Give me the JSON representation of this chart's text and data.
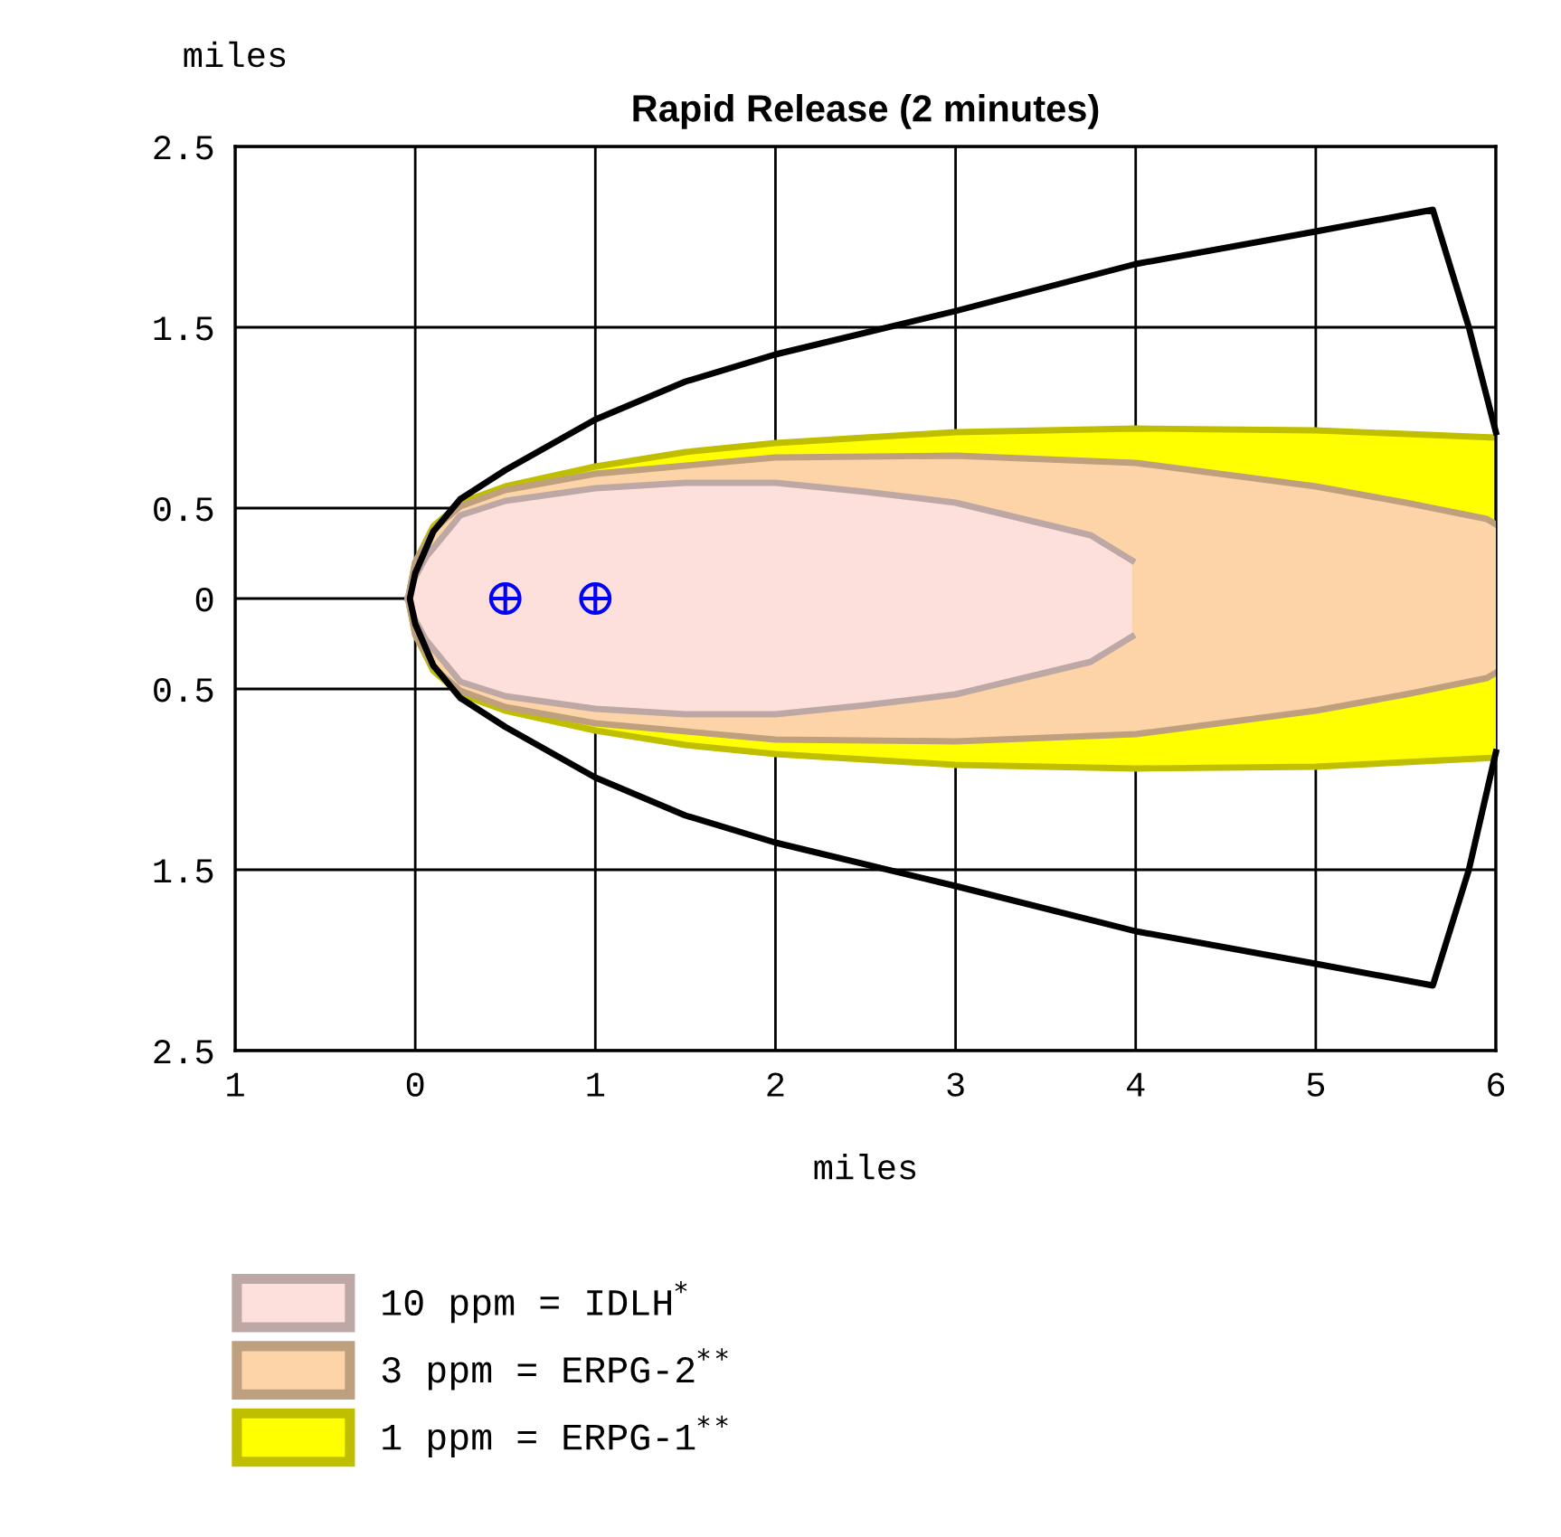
{
  "chart_data": {
    "type": "area",
    "title": "Rapid Release (2 minutes)",
    "xlabel": "miles",
    "ylabel": "miles",
    "xlim": [
      -1,
      6
    ],
    "xticks": [
      {
        "value": -1,
        "label": "1"
      },
      0,
      1,
      2,
      3,
      4,
      5,
      6
    ],
    "ylim": [
      -2.5,
      2.5
    ],
    "yticks": [
      {
        "value": 2.5,
        "label": "2.5"
      },
      {
        "value": 1.5,
        "label": "1.5"
      },
      {
        "value": 0.5,
        "label": "0.5"
      },
      0,
      {
        "value": -0.5,
        "label": "0.5"
      },
      {
        "value": -1.5,
        "label": "1.5"
      },
      {
        "value": -2.5,
        "label": "2.5"
      }
    ],
    "grid": true,
    "legend": "bottom",
    "series": [
      {
        "name": "1 ppm = ERPG-1$^{**}$",
        "color": "#ffff00",
        "x": [
          -0.04,
          0,
          0.1,
          0.25,
          0.5,
          1,
          1.5,
          2,
          3,
          4,
          5,
          6
        ],
        "values": [
          0,
          0.2,
          0.4,
          0.53,
          0.62,
          0.73,
          0.81,
          0.86,
          0.92,
          0.94,
          0.93,
          0.89
        ]
      },
      {
        "color": "#ffff00",
        "x": [
          -0.04,
          0,
          0.1,
          0.25,
          0.5,
          1,
          1.5,
          2,
          3,
          4,
          5,
          6
        ],
        "values": [
          0,
          -0.2,
          -0.4,
          -0.53,
          -0.62,
          -0.73,
          -0.81,
          -0.86,
          -0.92,
          -0.94,
          -0.93,
          -0.88
        ]
      },
      {
        "name": "3 ppm = ERPG-2$^{**}$",
        "color": "#fdd4a8",
        "x": [
          -0.04,
          0,
          0.1,
          0.25,
          0.5,
          1,
          2,
          3,
          4,
          5,
          5.5,
          5.95,
          6
        ],
        "values": [
          0,
          0.2,
          0.38,
          0.51,
          0.6,
          0.69,
          0.78,
          0.79,
          0.75,
          0.62,
          0.53,
          0.44,
          0.41
        ]
      },
      {
        "color": "#fdd4a8",
        "x": [
          -0.04,
          0,
          0.1,
          0.25,
          0.5,
          1,
          2,
          3,
          4,
          5,
          5.5,
          5.95,
          6
        ],
        "values": [
          0,
          -0.2,
          -0.38,
          -0.51,
          -0.6,
          -0.69,
          -0.78,
          -0.79,
          -0.75,
          -0.62,
          -0.53,
          -0.44,
          -0.41
        ]
      },
      {
        "name": "10 ppm = IDLH$^{*}$",
        "color": "#fde0dc",
        "x": [
          -0.04,
          0,
          0.06,
          0.25,
          0.5,
          1,
          1.5,
          2,
          2.5,
          3,
          3.5,
          3.75,
          3.98
        ],
        "values": [
          0,
          0.12,
          0.23,
          0.46,
          0.54,
          0.61,
          0.64,
          0.64,
          0.59,
          0.53,
          0.41,
          0.35,
          0.21
        ]
      },
      {
        "color": "#fde0dc",
        "x": [
          -0.04,
          0,
          0.06,
          0.25,
          0.5,
          1,
          1.5,
          2,
          2.5,
          3,
          3.5,
          3.75,
          3.98
        ],
        "values": [
          0,
          -0.12,
          -0.23,
          -0.46,
          -0.54,
          -0.61,
          -0.64,
          -0.64,
          -0.59,
          -0.53,
          -0.41,
          -0.35,
          -0.21
        ]
      },
      {
        "type": "line",
        "color": "#000000",
        "x": [
          6,
          5.85,
          5.65,
          5,
          4,
          3,
          2,
          1.5,
          1,
          0.5,
          0.25,
          0.1,
          0,
          -0.03,
          0,
          0.1,
          0.25,
          0.5,
          1,
          1.5,
          2,
          3,
          4,
          5,
          5.65,
          5.85,
          6
        ],
        "values": [
          0.92,
          1.5,
          2.15,
          2.03,
          1.85,
          1.59,
          1.35,
          1.2,
          0.99,
          0.71,
          0.55,
          0.37,
          0.14,
          0,
          -0.14,
          -0.37,
          -0.55,
          -0.71,
          -0.99,
          -1.2,
          -1.35,
          -1.59,
          -1.84,
          -2.02,
          -2.14,
          -1.5,
          -0.85
        ]
      },
      {
        "type": "scatter",
        "color": "#0000ff",
        "marker": "circle",
        "x": [
          0.5,
          1
        ],
        "values": [
          0,
          0
        ]
      }
    ]
  }
}
